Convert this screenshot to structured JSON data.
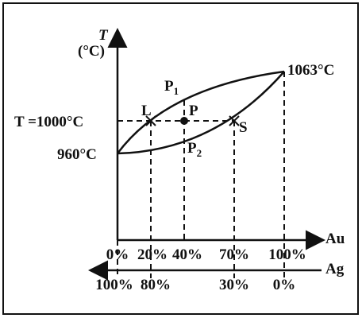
{
  "axes": {
    "y_label": "T",
    "y_unit": "(°C)",
    "x_label_top": "Au",
    "x_label_bottom": "Ag",
    "top_ticks": [
      "0%",
      "20%",
      "40%",
      "70%",
      "100%"
    ],
    "bottom_ticks": [
      "100%",
      "80%",
      "30%",
      "0%"
    ]
  },
  "labels": {
    "isotherm": "T =1000°C",
    "left_melt": "960°C",
    "right_melt": "1063°C",
    "L": "L",
    "P": "P",
    "S": "S",
    "P1": {
      "text": "P",
      "subscript": "1"
    },
    "P2": {
      "text": "P",
      "subscript": "2"
    }
  }
}
